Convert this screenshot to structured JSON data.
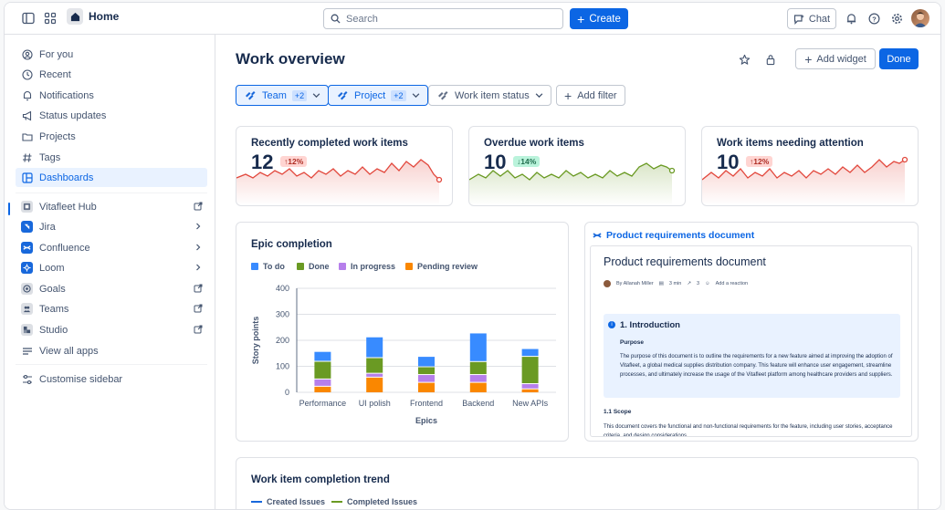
{
  "topbar": {
    "home_label": "Home",
    "search_placeholder": "Search",
    "create_label": "Create",
    "chat_label": "Chat"
  },
  "sidebar": {
    "items": [
      {
        "label": "For you",
        "icon": "user-circle-icon"
      },
      {
        "label": "Recent",
        "icon": "clock-icon"
      },
      {
        "label": "Notifications",
        "icon": "bell-icon"
      },
      {
        "label": "Status updates",
        "icon": "megaphone-icon"
      },
      {
        "label": "Projects",
        "icon": "folder-icon"
      },
      {
        "label": "Tags",
        "icon": "hash-icon"
      },
      {
        "label": "Dashboards",
        "icon": "dashboard-icon"
      }
    ],
    "apps": [
      {
        "label": "Vitafleet Hub",
        "icon": "vitafleet-icon",
        "trail": "external-link-icon"
      },
      {
        "label": "Jira",
        "icon": "jira-icon",
        "trail": "chevron-right-icon"
      },
      {
        "label": "Confluence",
        "icon": "confluence-icon",
        "trail": "chevron-right-icon"
      },
      {
        "label": "Loom",
        "icon": "loom-icon",
        "trail": "chevron-right-icon"
      },
      {
        "label": "Goals",
        "icon": "goals-icon",
        "trail": "external-link-icon"
      },
      {
        "label": "Teams",
        "icon": "teams-icon",
        "trail": "external-link-icon"
      },
      {
        "label": "Studio",
        "icon": "studio-icon",
        "trail": "external-link-icon"
      },
      {
        "label": "View all apps",
        "icon": "list-icon",
        "trail": ""
      }
    ],
    "customise_label": "Customise sidebar"
  },
  "header": {
    "title": "Work overview",
    "add_widget_label": "Add widget",
    "done_label": "Done"
  },
  "filters": {
    "team_label": "Team",
    "team_count": "+2",
    "project_label": "Project",
    "project_count": "+2",
    "status_label": "Work item status",
    "add_filter_label": "Add filter"
  },
  "kpis": [
    {
      "title": "Recently completed work items",
      "value": "12",
      "change": "↑12%",
      "tone": "red"
    },
    {
      "title": "Overdue work items",
      "value": "10",
      "change": "↓14%",
      "tone": "green"
    },
    {
      "title": "Work items needing attention",
      "value": "10",
      "change": "↑12%",
      "tone": "red"
    }
  ],
  "colors": {
    "accent": "#0C66E4",
    "todo": "#388BFF",
    "done": "#6A9A23",
    "in_progress": "#B67FEB",
    "pending_review": "#FA8700",
    "spark_red": "#E2483D",
    "spark_green": "#6A9A23"
  },
  "chart_data": {
    "type": "bar",
    "stacked": true,
    "title": "Epic completion",
    "xlabel": "Epics",
    "ylabel": "Story points",
    "ylim": [
      0,
      400
    ],
    "yticks": [
      "0",
      "100",
      "200",
      "300",
      "400"
    ],
    "categories": [
      "Performance",
      "UI polish",
      "Frontend",
      "Backend",
      "New APIs"
    ],
    "series": [
      {
        "name": "Pending review",
        "values": [
          25,
          60,
          40,
          40,
          15
        ]
      },
      {
        "name": "In progress",
        "values": [
          28,
          15,
          30,
          30,
          20
        ]
      },
      {
        "name": "Done",
        "values": [
          68,
          60,
          30,
          50,
          105
        ]
      },
      {
        "name": "To do",
        "values": [
          38,
          80,
          40,
          110,
          30
        ]
      }
    ],
    "legend": [
      "To do",
      "Done",
      "In progress",
      "Pending review"
    ]
  },
  "doc": {
    "link_label": "Product requirements document",
    "title": "Product requirements document",
    "author": "By Allanah Miller",
    "read_time": "3 min",
    "views": "3",
    "reaction": "Add a reaction",
    "intro_heading": "1. Introduction",
    "purpose_heading": "Purpose",
    "purpose_text": "The purpose of this document is to outline the requirements for a new feature aimed at improving the adoption of Vitafleet, a global medical supplies distribution company. This feature will enhance user engagement, streamline processes, and ultimately increase the usage of the Vitafleet platform among healthcare providers and suppliers.",
    "scope_heading": "1.1 Scope",
    "scope_text": "This document covers the functional and non-functional requirements for the feature, including user stories, acceptance criteria, and design considerations."
  },
  "trend": {
    "title": "Work item completion trend",
    "legend_created": "Created Issues",
    "legend_completed": "Completed Issues"
  }
}
